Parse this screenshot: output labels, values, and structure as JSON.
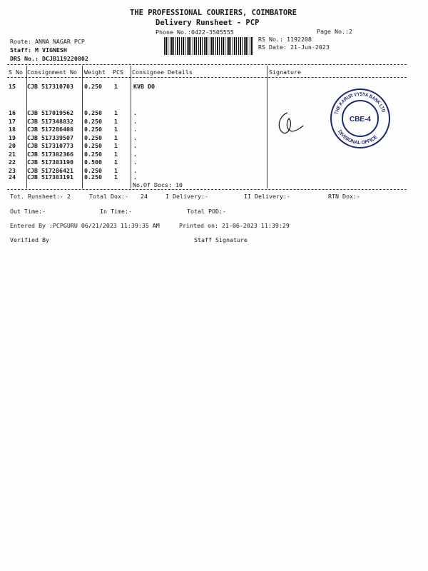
{
  "header": {
    "company": "THE PROFESSIONAL COURIERS, COIMBATORE",
    "doc_title": "Delivery Runsheet - PCP",
    "phone": "Phone No.:0422-3505555",
    "page_no": "Page No.:2",
    "route": "Route: ANNA NAGAR PCP",
    "staff": "Staff: M VIGNESH",
    "drs_no": "DRS No.: DCJB119220802",
    "rs_no": "RS No.: 1192208",
    "rs_date": "RS Date: 21-Jun-2023"
  },
  "table": {
    "columns": [
      "S No",
      "Consignment No",
      "Weight",
      "PCS",
      "Consignee Details",
      "Signature"
    ],
    "rows": [
      {
        "sno": "15",
        "cn": "CJB 517310703",
        "wt": "0.250",
        "pcs": "1",
        "details": "KVB DO"
      },
      {
        "sno": "16",
        "cn": "CJB 517019562",
        "wt": "0.250",
        "pcs": "1",
        "details": "."
      },
      {
        "sno": "17",
        "cn": "CJB 517348832",
        "wt": "0.250",
        "pcs": "1",
        "details": "."
      },
      {
        "sno": "18",
        "cn": "CJB 517286408",
        "wt": "0.250",
        "pcs": "1",
        "details": "."
      },
      {
        "sno": "19",
        "cn": "CJB 517339507",
        "wt": "0.250",
        "pcs": "1",
        "details": "."
      },
      {
        "sno": "20",
        "cn": "CJB 517310773",
        "wt": "0.250",
        "pcs": "1",
        "details": "."
      },
      {
        "sno": "21",
        "cn": "CJB 517382366",
        "wt": "0.250",
        "pcs": "1",
        "details": "."
      },
      {
        "sno": "22",
        "cn": "CJB 517383190",
        "wt": "0.500",
        "pcs": "1",
        "details": "."
      },
      {
        "sno": "23",
        "cn": "CJB 517286421",
        "wt": "0.250",
        "pcs": "1",
        "details": "."
      },
      {
        "sno": "24",
        "cn": "CJB 517383191",
        "wt": "0.250",
        "pcs": "1",
        "details": "."
      }
    ],
    "no_of_docs": "No.Of Docs: 10"
  },
  "stamp": {
    "text_ring": "THE KARUR VYSYA BANK LTD DIVISIONAL OFFICE",
    "center": "CBE-4",
    "color": "#1c2a6e"
  },
  "footer": {
    "tot_runsheet": "Tot. Runsheet:- 2",
    "total_dox": "Total Dox:-",
    "total_dox_value": "24",
    "i_delivery": "I Delivery:-",
    "ii_delivery": "II Delivery:-",
    "rtn_dox": "RTN Dox:-",
    "out_time": "Out Time:-",
    "in_time": "In Time:-",
    "total_pod": "Total POD:-",
    "entered_by": "Entered By :PCPGURU 06/21/2023 11:39:35 AM",
    "printed_on": "Printed on: 21-06-2023 11:39:29",
    "verified_by": "Verified By",
    "staff_signature": "Staff Signature"
  }
}
